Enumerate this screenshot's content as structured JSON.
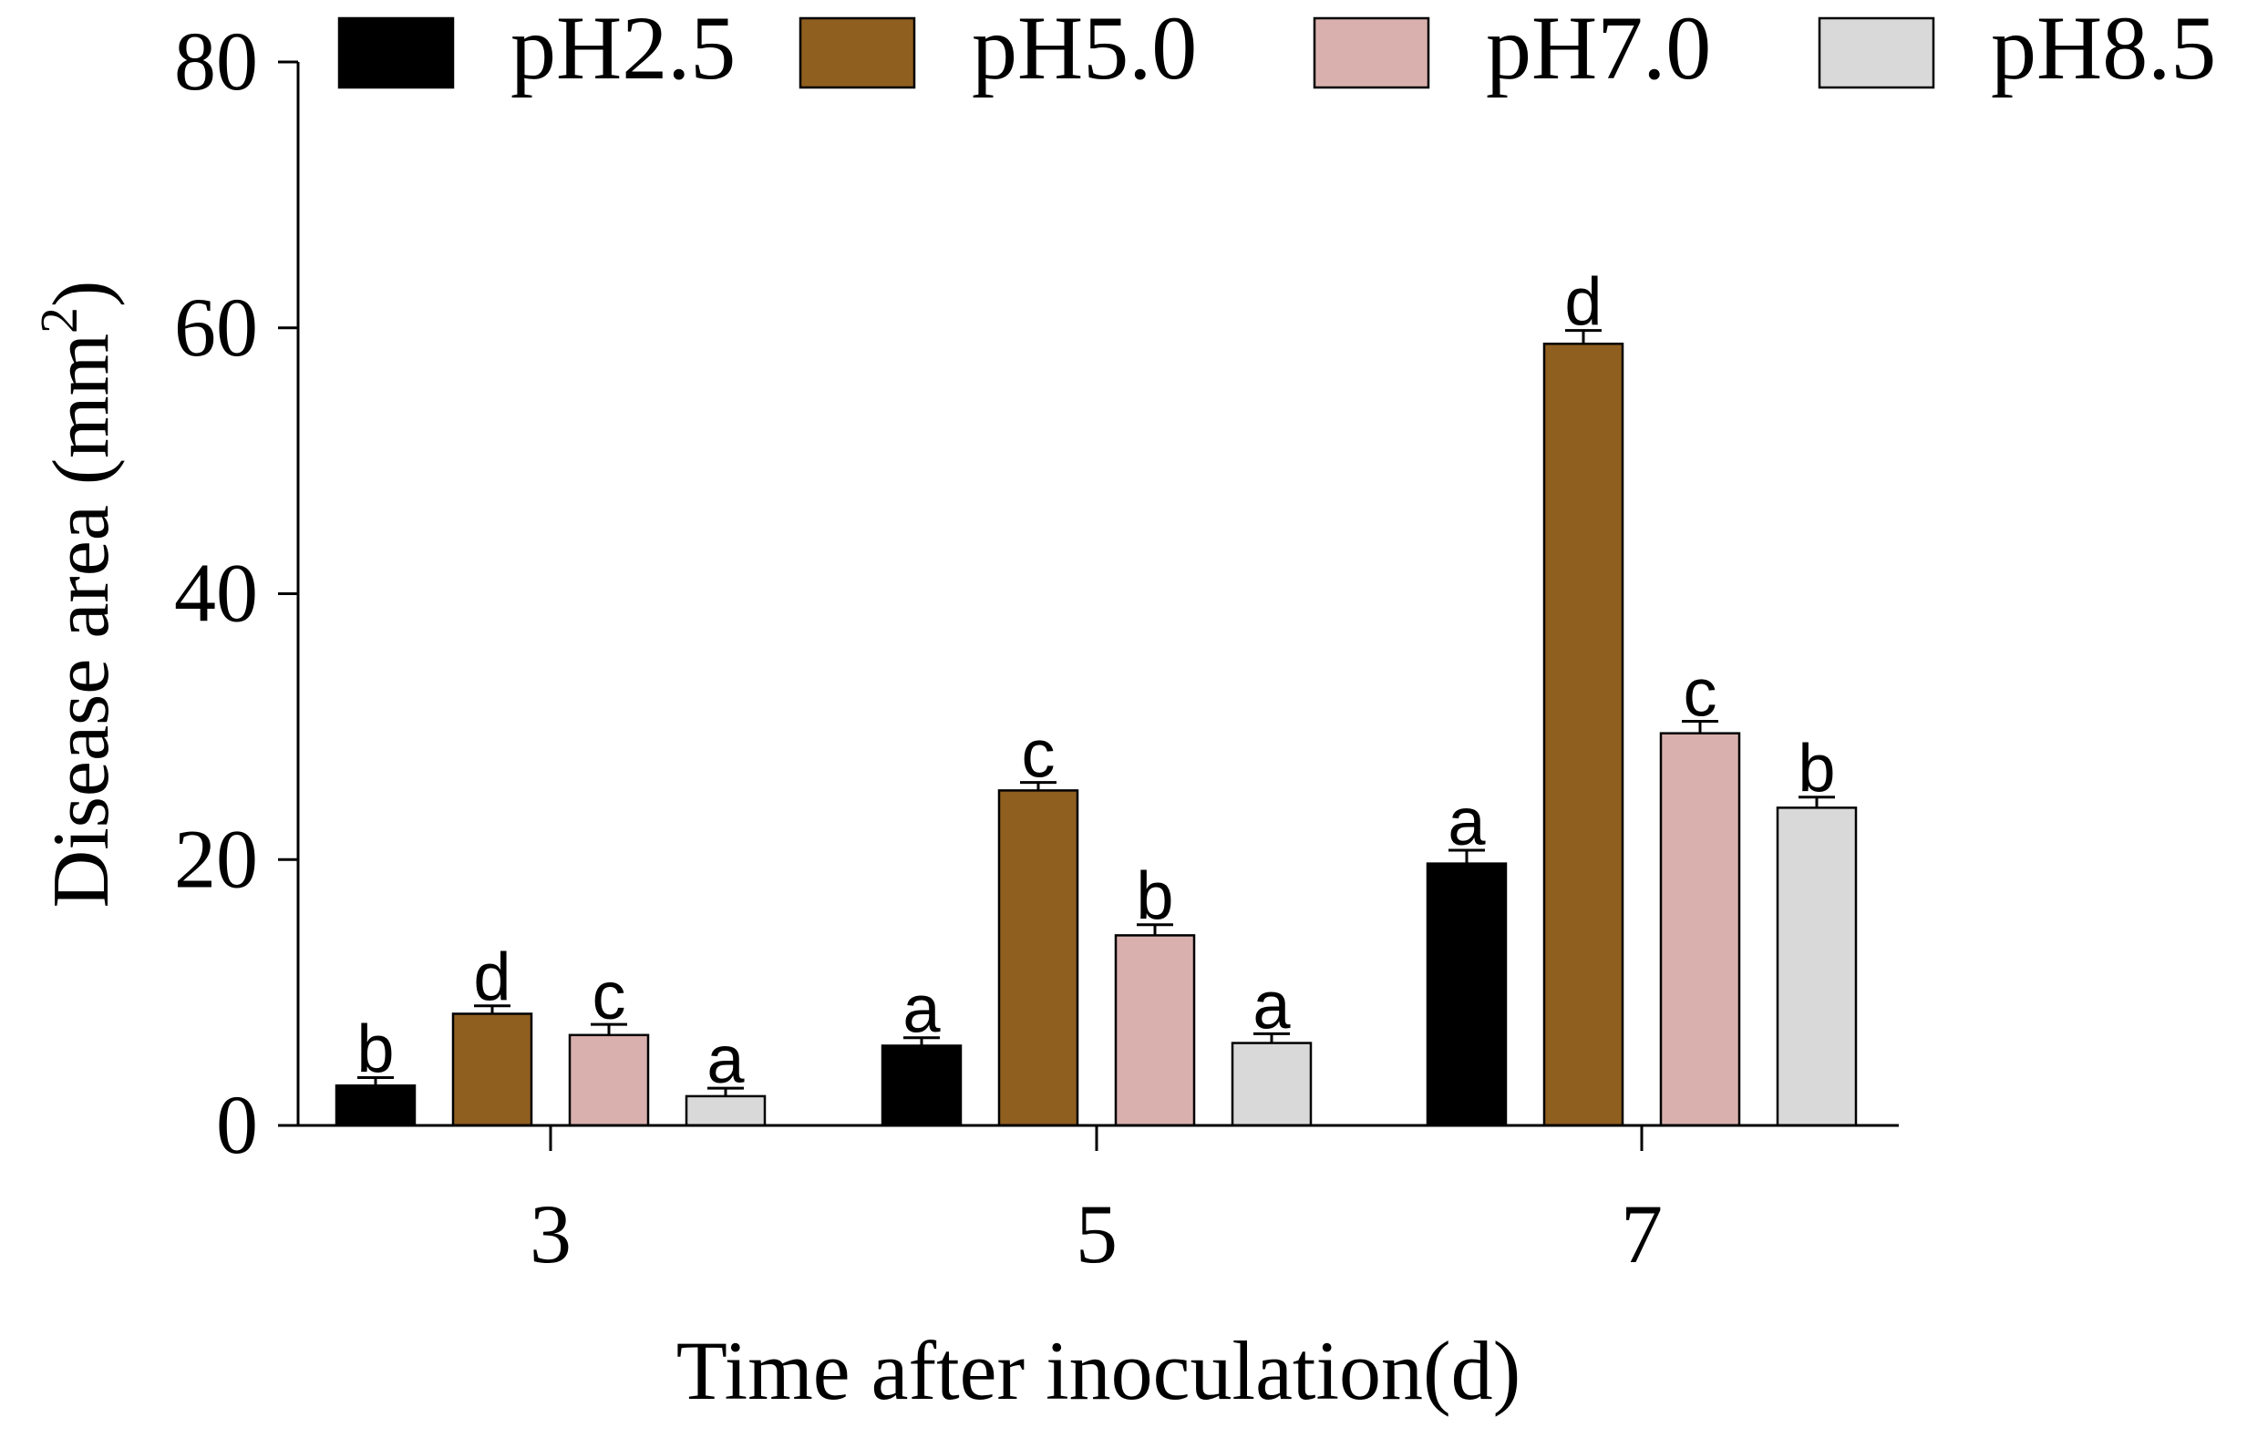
{
  "chart_data": {
    "type": "bar",
    "xlabel": "Time after inoculation(d)",
    "ylabel": "Disease area (mm",
    "ylabel_superscript": "2",
    "ylabel_suffix": ")",
    "ylim": [
      0,
      80
    ],
    "yticks": [
      "0",
      "20",
      "40",
      "60",
      "80"
    ],
    "categories": [
      "3",
      "5",
      "7"
    ],
    "legend_position": "top",
    "grid": false,
    "series": [
      {
        "name": "pH2.5",
        "color": "#000000",
        "values": [
          3.0,
          6.0,
          19.7
        ],
        "errors": [
          0.6,
          0.6,
          1.0
        ],
        "letters": [
          "b",
          "a",
          "a"
        ]
      },
      {
        "name": "pH5.0",
        "color": "#8F5F20",
        "values": [
          8.4,
          25.2,
          58.8
        ],
        "errors": [
          0.6,
          0.6,
          1.0
        ],
        "letters": [
          "d",
          "c",
          "d"
        ]
      },
      {
        "name": "pH7.0",
        "color": "#D9B0AE",
        "values": [
          6.8,
          14.3,
          29.5
        ],
        "errors": [
          0.8,
          0.8,
          0.9
        ],
        "letters": [
          "c",
          "b",
          "c"
        ]
      },
      {
        "name": "pH8.5",
        "color": "#D9D9D9",
        "values": [
          2.2,
          6.2,
          23.9
        ],
        "errors": [
          0.6,
          0.7,
          0.8
        ],
        "letters": [
          "a",
          "a",
          "b"
        ]
      }
    ]
  }
}
